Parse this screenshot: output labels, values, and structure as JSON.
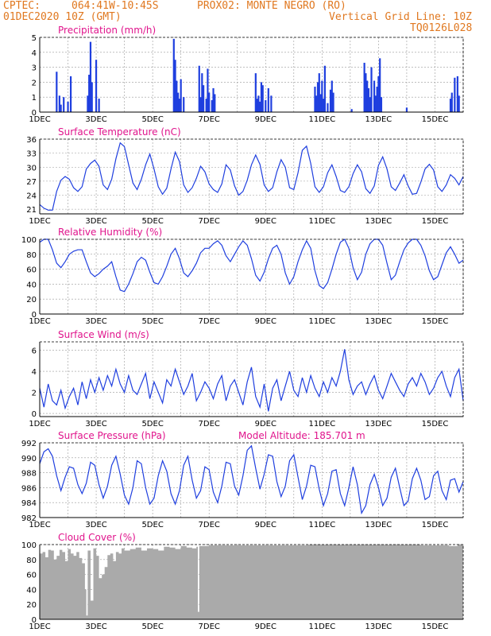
{
  "header": {
    "source": "CPTEC:",
    "coords": "064:41W-10:45S",
    "station": "PROX02: MONTE NEGRO (RO)",
    "run": "01DEC2020 10Z (GMT)",
    "grid_note": "Vertical Grid Line: 10Z",
    "code": "TQ0126L028"
  },
  "colors": {
    "header": "#e07820",
    "title": "#e0148c",
    "line": "#1f3fdf",
    "bar": "#1f3fdf",
    "cloud": "#aaaaaa"
  },
  "x_axis": {
    "ticks": [
      "1DEC",
      "3DEC",
      "5DEC",
      "7DEC",
      "9DEC",
      "11DEC",
      "13DEC",
      "15DEC"
    ],
    "xlim_days": [
      1,
      16
    ]
  },
  "chart_data": [
    {
      "type": "bar",
      "title": "Precipitation (mm/h)",
      "ylim": [
        0,
        5
      ],
      "yticks": [
        0,
        1,
        2,
        3,
        4,
        5
      ],
      "x": [
        1.6,
        1.7,
        1.75,
        1.85,
        2.0,
        2.1,
        2.7,
        2.75,
        2.8,
        2.85,
        3.0,
        3.1,
        5.75,
        5.8,
        5.85,
        5.9,
        5.95,
        6.0,
        6.1,
        6.65,
        6.7,
        6.75,
        6.8,
        6.9,
        6.95,
        7.0,
        7.1,
        7.15,
        7.2,
        8.65,
        8.7,
        8.75,
        8.8,
        8.85,
        8.9,
        9.0,
        9.1,
        9.2,
        10.75,
        10.8,
        10.85,
        10.9,
        10.95,
        11.0,
        11.05,
        11.1,
        11.2,
        11.3,
        11.35,
        11.4,
        12.05,
        12.5,
        12.55,
        12.6,
        12.65,
        12.7,
        12.75,
        12.85,
        12.9,
        12.95,
        13.0,
        13.05,
        13.1,
        14.0,
        15.55,
        15.6,
        15.7,
        15.8,
        15.85
      ],
      "values": [
        2.7,
        1.1,
        0.5,
        1.0,
        0.7,
        2.4,
        1.1,
        2.5,
        4.7,
        2.0,
        3.5,
        0.9,
        4.9,
        3.5,
        2.1,
        1.3,
        0.9,
        2.2,
        1.0,
        3.1,
        1.0,
        2.6,
        1.8,
        0.9,
        2.9,
        1.3,
        0.8,
        1.6,
        1.2,
        2.6,
        0.9,
        1.1,
        0.7,
        2.0,
        1.8,
        0.8,
        1.6,
        1.1,
        1.7,
        1.1,
        2.0,
        2.6,
        1.2,
        2.1,
        0.9,
        3.1,
        0.6,
        1.5,
        2.1,
        1.3,
        0.2,
        3.3,
        2.6,
        2.1,
        1.6,
        1.0,
        3.0,
        2.1,
        1.1,
        1.7,
        2.4,
        3.6,
        1.0,
        0.3,
        0.9,
        1.3,
        2.3,
        2.4,
        1.1
      ]
    },
    {
      "type": "line",
      "title": "Surface Temperature (nC)",
      "ylim": [
        20,
        36
      ],
      "yticks": [
        21,
        24,
        27,
        30,
        33,
        36
      ],
      "x": [
        1.0,
        1.15,
        1.3,
        1.45,
        1.6,
        1.75,
        1.9,
        2.05,
        2.2,
        2.35,
        2.5,
        2.65,
        2.8,
        2.95,
        3.1,
        3.25,
        3.4,
        3.55,
        3.7,
        3.85,
        4.0,
        4.15,
        4.3,
        4.45,
        4.6,
        4.75,
        4.9,
        5.05,
        5.2,
        5.35,
        5.5,
        5.65,
        5.8,
        5.95,
        6.1,
        6.25,
        6.4,
        6.55,
        6.7,
        6.85,
        7.0,
        7.15,
        7.3,
        7.45,
        7.6,
        7.75,
        7.9,
        8.05,
        8.2,
        8.35,
        8.5,
        8.65,
        8.8,
        8.95,
        9.1,
        9.25,
        9.4,
        9.55,
        9.7,
        9.85,
        10.0,
        10.15,
        10.3,
        10.45,
        10.6,
        10.75,
        10.9,
        11.05,
        11.2,
        11.35,
        11.5,
        11.65,
        11.8,
        11.95,
        12.1,
        12.25,
        12.4,
        12.55,
        12.7,
        12.85,
        13.0,
        13.15,
        13.3,
        13.45,
        13.6,
        13.75,
        13.9,
        14.05,
        14.2,
        14.35,
        14.5,
        14.65,
        14.8,
        14.95,
        15.1,
        15.25,
        15.4,
        15.55,
        15.7,
        15.85,
        16.0
      ],
      "values": [
        22.0,
        21.2,
        20.8,
        20.8,
        24.8,
        27.2,
        28.0,
        27.4,
        25.6,
        24.8,
        25.8,
        29.6,
        30.8,
        31.5,
        30.2,
        26.2,
        25.2,
        27.4,
        31.8,
        35.2,
        34.4,
        30.5,
        26.6,
        25.2,
        27.4,
        30.5,
        32.8,
        29.6,
        25.8,
        24.2,
        25.5,
        29.6,
        33.2,
        31.2,
        26.2,
        24.6,
        25.6,
        27.6,
        30.2,
        29.0,
        26.4,
        25.2,
        24.6,
        26.4,
        30.5,
        29.4,
        26.0,
        24.0,
        24.8,
        27.2,
        30.5,
        32.6,
        30.6,
        26.2,
        24.8,
        25.6,
        29.0,
        31.6,
        30.0,
        25.6,
        25.2,
        28.8,
        33.6,
        34.5,
        30.8,
        25.8,
        24.6,
        25.8,
        28.8,
        30.5,
        28.0,
        25.0,
        24.6,
        25.8,
        28.6,
        30.5,
        29.0,
        25.4,
        24.4,
        26.0,
        30.4,
        32.2,
        29.6,
        25.8,
        25.0,
        26.6,
        28.4,
        26.0,
        24.2,
        24.4,
        26.8,
        29.6,
        30.6,
        29.4,
        25.8,
        24.8,
        26.2,
        28.4,
        27.6,
        26.2,
        28.0
      ]
    },
    {
      "type": "line",
      "title": "Relative Humidity (%)",
      "ylim": [
        0,
        100
      ],
      "yticks": [
        0,
        20,
        40,
        60,
        80,
        100
      ],
      "x": [
        1.0,
        1.15,
        1.3,
        1.45,
        1.6,
        1.75,
        1.9,
        2.05,
        2.2,
        2.35,
        2.5,
        2.65,
        2.8,
        2.95,
        3.1,
        3.25,
        3.4,
        3.55,
        3.7,
        3.85,
        4.0,
        4.15,
        4.3,
        4.45,
        4.6,
        4.75,
        4.9,
        5.05,
        5.2,
        5.35,
        5.5,
        5.65,
        5.8,
        5.95,
        6.1,
        6.25,
        6.4,
        6.55,
        6.7,
        6.85,
        7.0,
        7.15,
        7.3,
        7.45,
        7.6,
        7.75,
        7.9,
        8.05,
        8.2,
        8.35,
        8.5,
        8.65,
        8.8,
        8.95,
        9.1,
        9.25,
        9.4,
        9.55,
        9.7,
        9.85,
        10.0,
        10.15,
        10.3,
        10.45,
        10.6,
        10.75,
        10.9,
        11.05,
        11.2,
        11.35,
        11.5,
        11.65,
        11.8,
        11.95,
        12.1,
        12.25,
        12.4,
        12.55,
        12.7,
        12.85,
        13.0,
        13.15,
        13.3,
        13.45,
        13.6,
        13.75,
        13.9,
        14.05,
        14.2,
        14.35,
        14.5,
        14.65,
        14.8,
        14.95,
        15.1,
        15.25,
        15.4,
        15.55,
        15.7,
        15.85,
        16.0
      ],
      "values": [
        96,
        100,
        100,
        86,
        68,
        62,
        70,
        80,
        84,
        86,
        86,
        70,
        55,
        50,
        54,
        60,
        64,
        70,
        50,
        32,
        30,
        40,
        54,
        70,
        76,
        72,
        56,
        42,
        40,
        50,
        64,
        80,
        88,
        74,
        55,
        50,
        58,
        68,
        82,
        88,
        88,
        94,
        98,
        92,
        78,
        70,
        80,
        90,
        98,
        92,
        74,
        52,
        44,
        56,
        74,
        88,
        92,
        80,
        55,
        40,
        50,
        70,
        86,
        98,
        88,
        58,
        38,
        34,
        42,
        60,
        80,
        96,
        100,
        88,
        62,
        46,
        56,
        80,
        94,
        100,
        100,
        92,
        68,
        46,
        52,
        70,
        86,
        95,
        100,
        100,
        92,
        78,
        58,
        46,
        50,
        66,
        82,
        90,
        80,
        68,
        72
      ]
    },
    {
      "type": "line",
      "title": "Surface Wind (m/s)",
      "ylim": [
        -0.3,
        6.8
      ],
      "yticks": [
        0,
        2,
        4,
        6
      ],
      "x": [
        1.0,
        1.15,
        1.3,
        1.45,
        1.6,
        1.75,
        1.9,
        2.05,
        2.2,
        2.35,
        2.5,
        2.65,
        2.8,
        2.95,
        3.1,
        3.25,
        3.4,
        3.55,
        3.7,
        3.85,
        4.0,
        4.15,
        4.3,
        4.45,
        4.6,
        4.75,
        4.9,
        5.05,
        5.2,
        5.35,
        5.5,
        5.65,
        5.8,
        5.95,
        6.1,
        6.25,
        6.4,
        6.55,
        6.7,
        6.85,
        7.0,
        7.15,
        7.3,
        7.45,
        7.6,
        7.75,
        7.9,
        8.05,
        8.2,
        8.35,
        8.5,
        8.65,
        8.8,
        8.95,
        9.1,
        9.25,
        9.4,
        9.55,
        9.7,
        9.85,
        10.0,
        10.15,
        10.3,
        10.45,
        10.6,
        10.75,
        10.9,
        11.05,
        11.2,
        11.35,
        11.5,
        11.65,
        11.8,
        11.95,
        12.1,
        12.25,
        12.4,
        12.55,
        12.7,
        12.85,
        13.0,
        13.15,
        13.3,
        13.45,
        13.6,
        13.75,
        13.9,
        14.05,
        14.2,
        14.35,
        14.5,
        14.65,
        14.8,
        14.95,
        15.1,
        15.25,
        15.4,
        15.55,
        15.7,
        15.85,
        16.0
      ],
      "values": [
        2.4,
        0.6,
        2.8,
        1.2,
        0.8,
        2.2,
        0.5,
        1.6,
        2.4,
        0.8,
        3.0,
        1.4,
        3.2,
        2.0,
        3.4,
        2.2,
        3.6,
        2.6,
        4.2,
        2.8,
        2.0,
        3.6,
        2.2,
        1.8,
        2.8,
        3.8,
        1.4,
        3.0,
        2.0,
        1.0,
        3.2,
        2.6,
        4.2,
        3.0,
        1.8,
        2.6,
        3.8,
        1.2,
        2.0,
        3.0,
        2.4,
        1.4,
        2.8,
        3.6,
        1.2,
        2.6,
        3.2,
        2.0,
        0.8,
        3.0,
        4.4,
        1.6,
        0.6,
        2.8,
        0.2,
        2.4,
        3.2,
        1.2,
        2.6,
        4.0,
        2.2,
        1.6,
        3.4,
        2.0,
        3.6,
        2.4,
        1.6,
        3.0,
        2.0,
        3.4,
        2.6,
        4.0,
        6.1,
        3.2,
        1.8,
        2.6,
        3.0,
        1.8,
        2.8,
        3.6,
        2.2,
        1.4,
        2.6,
        3.8,
        3.0,
        2.2,
        1.6,
        2.8,
        3.4,
        2.6,
        3.8,
        3.0,
        1.8,
        2.4,
        3.4,
        4.0,
        2.6,
        1.6,
        3.4,
        4.2,
        1.2
      ]
    },
    {
      "type": "line",
      "title": "Surface Pressure (hPa)",
      "annotation": "Model Altitude: 185.701 m",
      "ylim": [
        982,
        992
      ],
      "yticks": [
        982,
        984,
        986,
        988,
        990,
        992
      ],
      "x": [
        1.0,
        1.15,
        1.3,
        1.45,
        1.6,
        1.75,
        1.9,
        2.05,
        2.2,
        2.35,
        2.5,
        2.65,
        2.8,
        2.95,
        3.1,
        3.25,
        3.4,
        3.55,
        3.7,
        3.85,
        4.0,
        4.15,
        4.3,
        4.45,
        4.6,
        4.75,
        4.9,
        5.05,
        5.2,
        5.35,
        5.5,
        5.65,
        5.8,
        5.95,
        6.1,
        6.25,
        6.4,
        6.55,
        6.7,
        6.85,
        7.0,
        7.15,
        7.3,
        7.45,
        7.6,
        7.75,
        7.9,
        8.05,
        8.2,
        8.35,
        8.5,
        8.65,
        8.8,
        8.95,
        9.1,
        9.25,
        9.4,
        9.55,
        9.7,
        9.85,
        10.0,
        10.15,
        10.3,
        10.45,
        10.6,
        10.75,
        10.9,
        11.05,
        11.2,
        11.35,
        11.5,
        11.65,
        11.8,
        11.95,
        12.1,
        12.25,
        12.4,
        12.55,
        12.7,
        12.85,
        13.0,
        13.15,
        13.3,
        13.45,
        13.6,
        13.75,
        13.9,
        14.05,
        14.2,
        14.35,
        14.5,
        14.65,
        14.8,
        14.95,
        15.1,
        15.25,
        15.4,
        15.55,
        15.7,
        15.85,
        16.0
      ],
      "values": [
        989.2,
        990.8,
        991.2,
        990.2,
        987.6,
        985.6,
        987.4,
        988.8,
        988.6,
        986.4,
        985.2,
        986.6,
        989.4,
        989.0,
        986.4,
        984.6,
        986.2,
        989.0,
        990.2,
        987.8,
        985.0,
        983.8,
        986.0,
        989.6,
        989.2,
        986.0,
        983.8,
        984.6,
        987.6,
        989.6,
        988.2,
        985.2,
        983.8,
        985.6,
        989.0,
        990.2,
        987.0,
        984.6,
        985.6,
        988.8,
        988.4,
        985.4,
        984.0,
        986.2,
        989.4,
        989.2,
        986.2,
        985.0,
        987.6,
        991.0,
        991.6,
        988.6,
        985.8,
        987.8,
        990.4,
        990.2,
        986.8,
        984.8,
        986.2,
        989.6,
        990.4,
        987.4,
        984.4,
        986.2,
        989.0,
        988.8,
        985.8,
        983.6,
        985.2,
        988.2,
        988.4,
        985.2,
        983.6,
        986.0,
        988.8,
        986.4,
        982.6,
        983.6,
        986.4,
        987.8,
        986.0,
        983.6,
        984.6,
        987.4,
        988.6,
        986.0,
        983.6,
        984.2,
        987.2,
        988.6,
        987.0,
        984.4,
        984.8,
        987.6,
        988.2,
        985.6,
        984.4,
        987.0,
        987.2,
        985.4,
        986.8
      ]
    },
    {
      "type": "area",
      "title": "Cloud Cover (%)",
      "ylim": [
        0,
        100
      ],
      "yticks": [
        0,
        20,
        40,
        60,
        80,
        100
      ],
      "x": [
        1.0,
        1.1,
        1.2,
        1.3,
        1.4,
        1.5,
        1.6,
        1.7,
        1.8,
        1.9,
        2.0,
        2.1,
        2.2,
        2.3,
        2.4,
        2.5,
        2.6,
        2.65,
        2.7,
        2.8,
        2.9,
        3.0,
        3.1,
        3.2,
        3.3,
        3.4,
        3.5,
        3.6,
        3.7,
        3.8,
        3.9,
        4.0,
        4.2,
        4.4,
        4.6,
        4.8,
        5.0,
        5.2,
        5.4,
        5.6,
        5.8,
        6.0,
        6.2,
        6.4,
        6.55,
        6.6,
        6.65,
        6.8,
        7.0,
        7.5,
        8.0,
        8.5,
        9.0,
        9.5,
        10.0,
        10.5,
        11.0,
        11.5,
        12.0,
        12.5,
        13.0,
        13.5,
        14.0,
        14.5,
        15.0,
        15.5,
        15.8,
        16.0
      ],
      "values": [
        88,
        90,
        83,
        93,
        92,
        80,
        85,
        93,
        90,
        78,
        94,
        88,
        85,
        90,
        82,
        75,
        40,
        5,
        92,
        25,
        95,
        85,
        55,
        60,
        70,
        86,
        88,
        78,
        90,
        88,
        95,
        92,
        94,
        96,
        92,
        95,
        94,
        92,
        97,
        96,
        94,
        98,
        96,
        95,
        97,
        10,
        98,
        98,
        99,
        99,
        99,
        99,
        99,
        99,
        99,
        100,
        100,
        100,
        100,
        100,
        100,
        100,
        100,
        99,
        99,
        98,
        100,
        100
      ]
    }
  ]
}
